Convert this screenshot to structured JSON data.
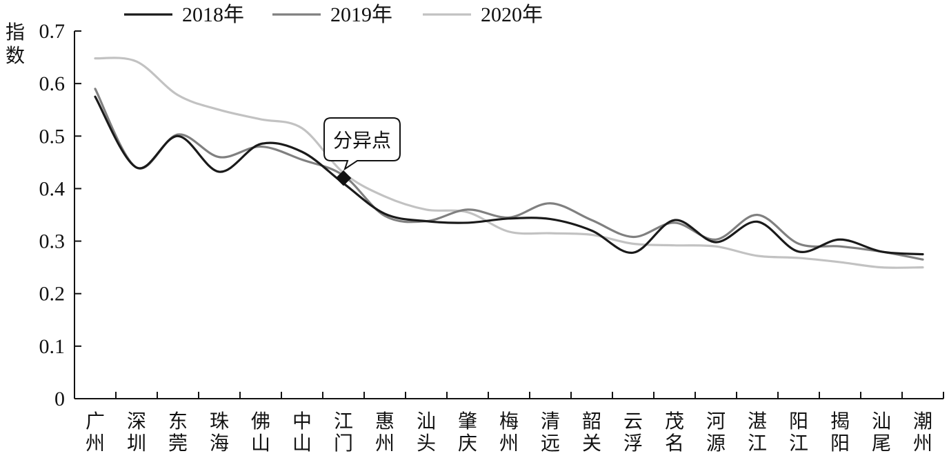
{
  "chart_data": {
    "type": "line",
    "ylabel": "指数",
    "xlabel": "",
    "ylim": [
      0,
      0.7
    ],
    "yticks": [
      "0",
      "0.1",
      "0.2",
      "0.3",
      "0.4",
      "0.5",
      "0.6",
      "0.7"
    ],
    "categories": [
      "广州",
      "深圳",
      "东莞",
      "珠海",
      "佛山",
      "中山",
      "江门",
      "惠州",
      "汕头",
      "肇庆",
      "梅州",
      "清远",
      "韶关",
      "云浮",
      "茂名",
      "河源",
      "湛江",
      "阳江",
      "揭阳",
      "汕尾",
      "潮州"
    ],
    "series": [
      {
        "name": "2018年",
        "color": "#1a1a1a",
        "values": [
          0.575,
          0.44,
          0.5,
          0.432,
          0.485,
          0.47,
          0.41,
          0.352,
          0.338,
          0.335,
          0.343,
          0.342,
          0.32,
          0.278,
          0.34,
          0.298,
          0.337,
          0.28,
          0.303,
          0.28,
          0.275
        ]
      },
      {
        "name": "2019年",
        "color": "#808080",
        "values": [
          0.59,
          0.44,
          0.503,
          0.46,
          0.48,
          0.455,
          0.425,
          0.348,
          0.338,
          0.36,
          0.345,
          0.372,
          0.34,
          0.308,
          0.335,
          0.303,
          0.35,
          0.295,
          0.29,
          0.28,
          0.265
        ]
      },
      {
        "name": "2020年",
        "color": "#c2c2c2",
        "values": [
          0.648,
          0.642,
          0.578,
          0.55,
          0.532,
          0.515,
          0.43,
          0.385,
          0.36,
          0.355,
          0.318,
          0.315,
          0.312,
          0.295,
          0.292,
          0.29,
          0.272,
          0.268,
          0.26,
          0.25,
          0.25
        ]
      }
    ],
    "annotation": {
      "text": "分异点",
      "x_position": 6.5,
      "y_value": 0.42
    },
    "legend_position": "top",
    "grid": false
  }
}
